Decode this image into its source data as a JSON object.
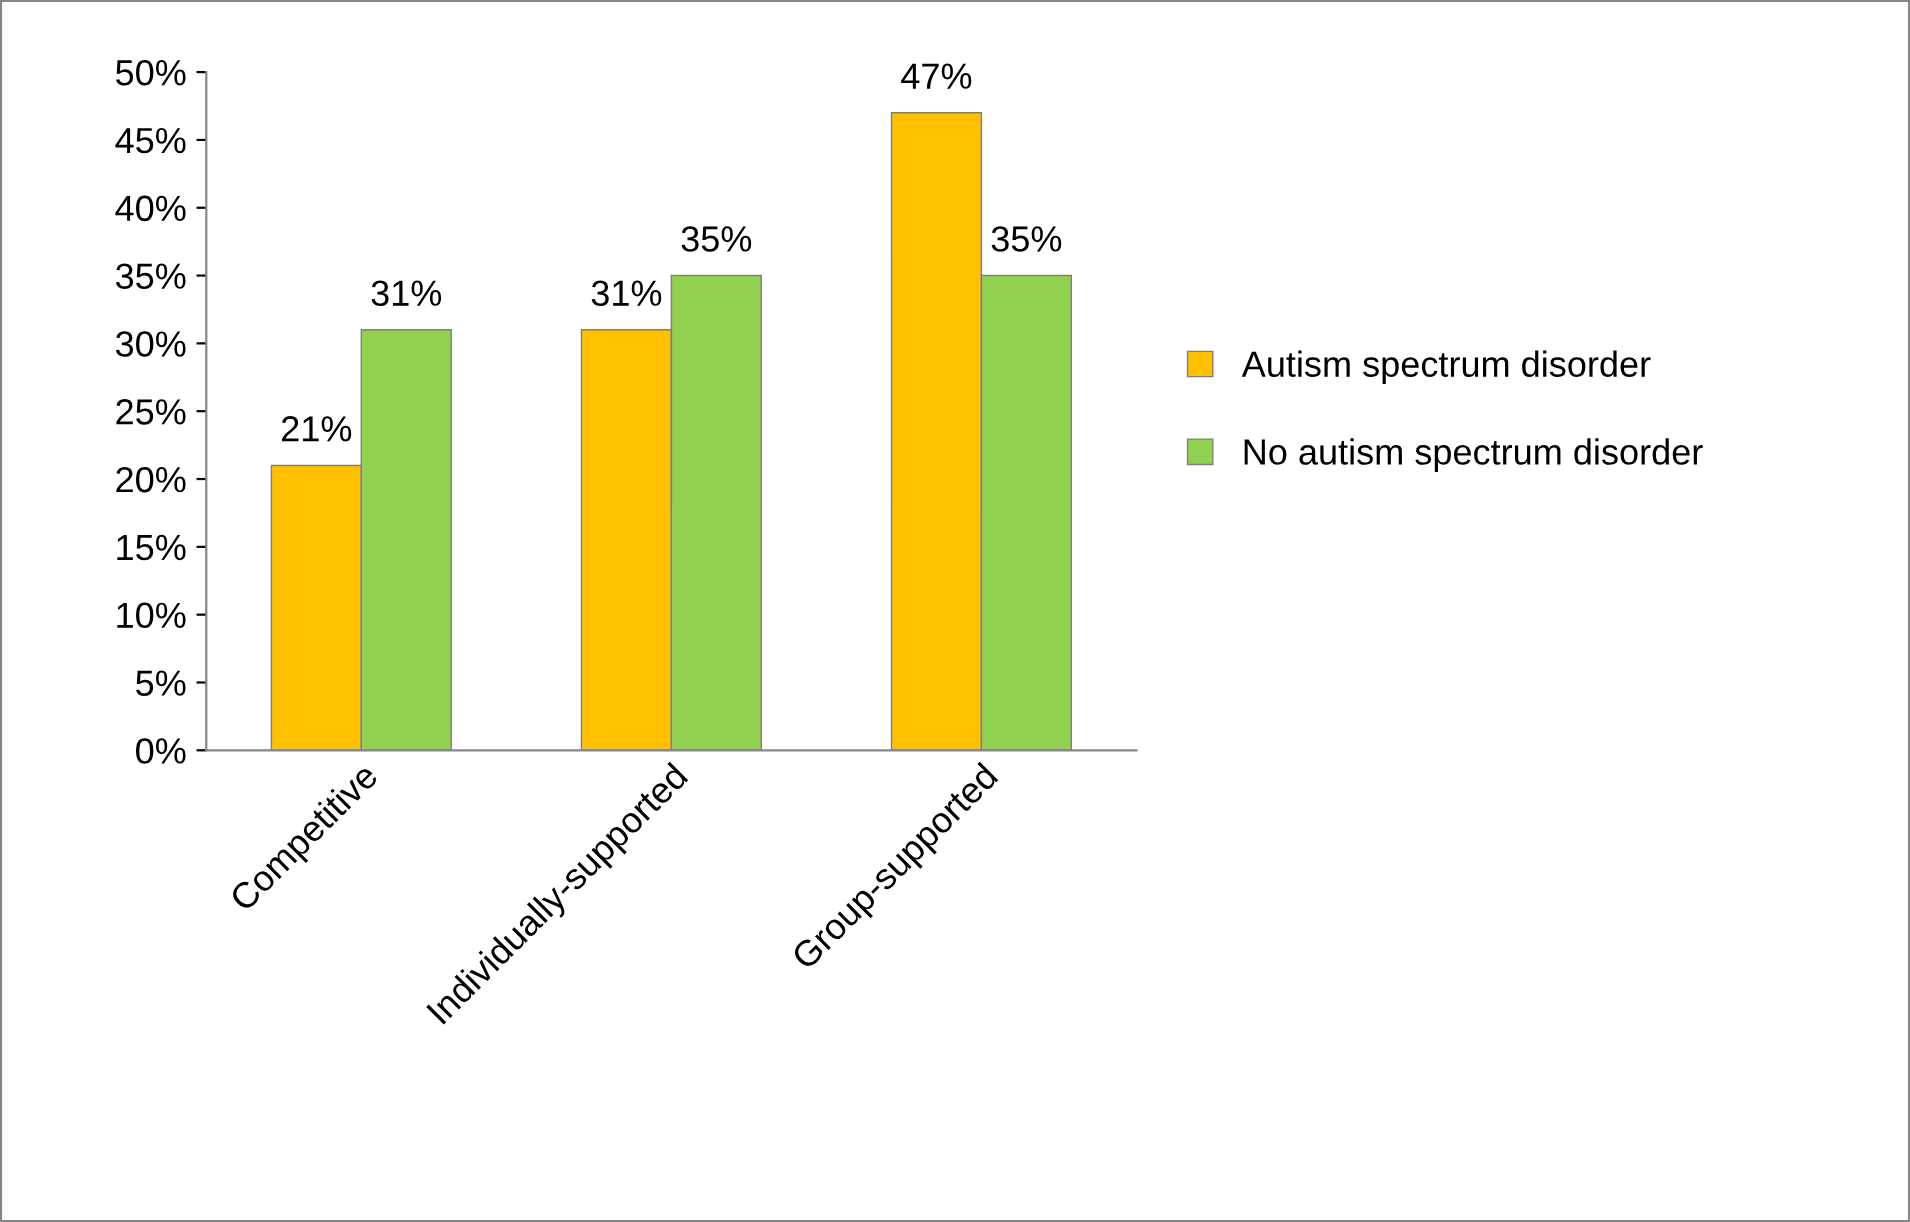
{
  "chart_data": {
    "type": "bar",
    "categories": [
      "Competitive",
      "Individually-supported",
      "Group-supported"
    ],
    "series": [
      {
        "name": "Autism spectrum disorder",
        "color": "#ffc000",
        "values": [
          21,
          31,
          47
        ],
        "value_labels": [
          "21%",
          "31%",
          "47%"
        ]
      },
      {
        "name": "No autism spectrum disorder",
        "color": "#92d050",
        "values": [
          31,
          35,
          35
        ],
        "value_labels": [
          "31%",
          "35%",
          "35%"
        ]
      }
    ],
    "ylim": [
      0,
      50
    ],
    "yticks": [
      {
        "value": 0,
        "label": "0%"
      },
      {
        "value": 5,
        "label": "5%"
      },
      {
        "value": 10,
        "label": "10%"
      },
      {
        "value": 15,
        "label": "15%"
      },
      {
        "value": 20,
        "label": "20%"
      },
      {
        "value": 25,
        "label": "25%"
      },
      {
        "value": 30,
        "label": "30%"
      },
      {
        "value": 35,
        "label": "35%"
      },
      {
        "value": 40,
        "label": "40%"
      },
      {
        "value": 45,
        "label": "45%"
      },
      {
        "value": 50,
        "label": "50%"
      }
    ],
    "grid": false,
    "legend": "right"
  }
}
